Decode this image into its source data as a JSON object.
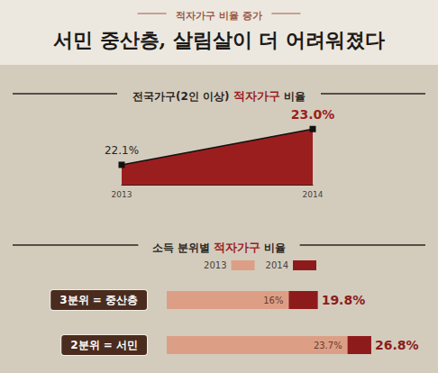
{
  "header": {
    "tag": "적자가구 비율 증가",
    "title": "서민 중산층, 살림살이 더 어려워졌다"
  },
  "chart_data": [
    {
      "type": "area",
      "title": "전국가구(2인 이상) 적자가구 비율",
      "categories": [
        "2013",
        "2014"
      ],
      "values": [
        22.1,
        23.0
      ],
      "value_labels": [
        "22.1%",
        "23.0%"
      ],
      "color": "#9b1e1e",
      "marker": "square",
      "ylim": [
        21.6,
        23.3
      ],
      "data_labels": true,
      "tick_labels": "x",
      "grid": false
    },
    {
      "type": "bar",
      "orientation": "horizontal",
      "title": "소득 분위별 적자가구 비율",
      "categories": [
        "3분위 = 중산층",
        "2분위 = 서민"
      ],
      "series": [
        {
          "name": "2013",
          "color": "#dc9f86",
          "values": [
            16,
            23.7
          ],
          "value_labels": [
            "16%",
            "23.7%"
          ]
        },
        {
          "name": "2014",
          "color": "#8e1b1b",
          "values": [
            19.8,
            26.8
          ],
          "value_labels": [
            "19.8%",
            "26.8%"
          ]
        }
      ],
      "xlim": [
        0,
        30
      ],
      "legend": "top",
      "data_labels": true,
      "tick_labels": "y",
      "grid": false
    }
  ]
}
